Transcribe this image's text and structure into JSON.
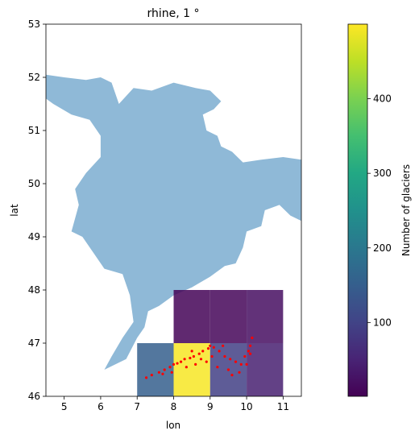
{
  "chart_data": {
    "type": "heatmap",
    "title": "rhine, 1 °",
    "xlabel": "lon",
    "ylabel": "lat",
    "xlim": [
      4.5,
      11.5
    ],
    "ylim": [
      46,
      53
    ],
    "xticks": [
      "5",
      "6",
      "7",
      "8",
      "9",
      "10",
      "11"
    ],
    "yticks": [
      "46",
      "47",
      "48",
      "49",
      "50",
      "51",
      "52",
      "53"
    ],
    "grid": false,
    "colorbar": {
      "label": "Number of glaciers",
      "colormap": "viridis",
      "range": [
        1,
        500
      ],
      "ticks": [
        "100",
        "200",
        "300",
        "400"
      ]
    },
    "cells": [
      {
        "lon": [
          7,
          8
        ],
        "lat": [
          46,
          47
        ],
        "count": 150
      },
      {
        "lon": [
          8,
          9
        ],
        "lat": [
          46,
          47
        ],
        "count": 495
      },
      {
        "lon": [
          9,
          10
        ],
        "lat": [
          46,
          47
        ],
        "count": 95
      },
      {
        "lon": [
          10,
          11
        ],
        "lat": [
          46,
          47
        ],
        "count": 45
      },
      {
        "lon": [
          8,
          9
        ],
        "lat": [
          47,
          48
        ],
        "count": 5
      },
      {
        "lon": [
          9,
          10
        ],
        "lat": [
          47,
          48
        ],
        "count": 8
      },
      {
        "lon": [
          10,
          11
        ],
        "lat": [
          47,
          48
        ],
        "count": 20
      }
    ],
    "basin": {
      "name": "rhine",
      "color": "#8fb9d7",
      "outline": [
        [
          4.5,
          52.05
        ],
        [
          5.0,
          52.0
        ],
        [
          5.6,
          51.95
        ],
        [
          6.0,
          52.0
        ],
        [
          6.3,
          51.9
        ],
        [
          6.5,
          51.5
        ],
        [
          6.9,
          51.8
        ],
        [
          7.4,
          51.75
        ],
        [
          8.0,
          51.9
        ],
        [
          8.6,
          51.8
        ],
        [
          9.0,
          51.75
        ],
        [
          9.3,
          51.55
        ],
        [
          9.1,
          51.4
        ],
        [
          8.8,
          51.3
        ],
        [
          8.9,
          51.0
        ],
        [
          9.2,
          50.9
        ],
        [
          9.3,
          50.7
        ],
        [
          9.6,
          50.6
        ],
        [
          9.9,
          50.4
        ],
        [
          10.4,
          50.45
        ],
        [
          11.0,
          50.5
        ],
        [
          11.5,
          50.45
        ],
        [
          11.5,
          49.3
        ],
        [
          11.2,
          49.4
        ],
        [
          10.9,
          49.6
        ],
        [
          10.5,
          49.5
        ],
        [
          10.4,
          49.2
        ],
        [
          10.0,
          49.1
        ],
        [
          9.9,
          48.8
        ],
        [
          9.7,
          48.5
        ],
        [
          9.4,
          48.45
        ],
        [
          9.0,
          48.25
        ],
        [
          8.5,
          48.05
        ],
        [
          8.0,
          47.9
        ],
        [
          7.6,
          47.7
        ],
        [
          7.3,
          47.6
        ],
        [
          7.2,
          47.3
        ],
        [
          7.0,
          47.1
        ],
        [
          6.7,
          46.7
        ],
        [
          6.1,
          46.5
        ],
        [
          6.3,
          46.75
        ],
        [
          6.6,
          47.1
        ],
        [
          6.9,
          47.4
        ],
        [
          6.8,
          47.9
        ],
        [
          6.6,
          48.3
        ],
        [
          6.1,
          48.4
        ],
        [
          5.8,
          48.7
        ],
        [
          5.5,
          49.0
        ],
        [
          5.2,
          49.1
        ],
        [
          5.4,
          49.6
        ],
        [
          5.3,
          49.9
        ],
        [
          5.6,
          50.2
        ],
        [
          6.0,
          50.5
        ],
        [
          6.0,
          50.9
        ],
        [
          5.7,
          51.2
        ],
        [
          5.2,
          51.3
        ],
        [
          4.7,
          51.5
        ],
        [
          4.5,
          51.6
        ]
      ]
    },
    "glacier_points": {
      "color": "#ff0000",
      "points": [
        [
          7.25,
          46.35
        ],
        [
          7.4,
          46.4
        ],
        [
          7.6,
          46.45
        ],
        [
          7.75,
          46.5
        ],
        [
          7.9,
          46.55
        ],
        [
          8.0,
          46.6
        ],
        [
          8.1,
          46.62
        ],
        [
          8.2,
          46.65
        ],
        [
          8.3,
          46.7
        ],
        [
          8.45,
          46.72
        ],
        [
          8.55,
          46.75
        ],
        [
          8.7,
          46.8
        ],
        [
          8.8,
          46.85
        ],
        [
          8.95,
          46.9
        ],
        [
          9.0,
          46.95
        ],
        [
          9.1,
          46.92
        ],
        [
          9.25,
          46.85
        ],
        [
          9.4,
          46.75
        ],
        [
          9.55,
          46.7
        ],
        [
          9.7,
          46.65
        ],
        [
          9.85,
          46.6
        ],
        [
          9.95,
          46.75
        ],
        [
          10.05,
          46.85
        ],
        [
          10.1,
          46.95
        ],
        [
          10.15,
          47.1
        ],
        [
          8.35,
          46.55
        ],
        [
          8.6,
          46.6
        ],
        [
          8.9,
          46.65
        ],
        [
          9.2,
          46.55
        ],
        [
          9.5,
          46.5
        ],
        [
          9.6,
          46.4
        ],
        [
          9.8,
          46.45
        ],
        [
          10.0,
          46.6
        ],
        [
          8.5,
          46.85
        ],
        [
          8.75,
          46.7
        ],
        [
          9.05,
          46.75
        ],
        [
          9.35,
          46.95
        ],
        [
          7.95,
          46.45
        ],
        [
          7.7,
          46.42
        ],
        [
          10.1,
          46.8
        ]
      ]
    }
  }
}
